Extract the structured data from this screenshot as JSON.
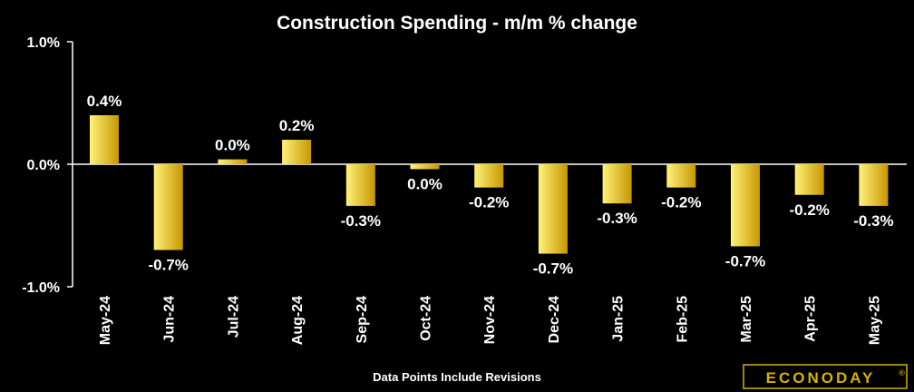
{
  "chart_data": {
    "type": "bar",
    "title": "Construction Spending - m/m % change",
    "categories": [
      "May-24",
      "Jun-24",
      "Jul-24",
      "Aug-24",
      "Sep-24",
      "Oct-24",
      "Nov-24",
      "Dec-24",
      "Jan-25",
      "Feb-25",
      "Mar-25",
      "Apr-25",
      "May-25"
    ],
    "values": [
      0.4,
      -0.7,
      0.04,
      0.2,
      -0.34,
      -0.04,
      -0.19,
      -0.73,
      -0.32,
      -0.19,
      -0.67,
      -0.25,
      -0.34
    ],
    "data_labels": [
      "0.4%",
      "-0.7%",
      "0.0%",
      "0.2%",
      "-0.3%",
      "0.0%",
      "-0.2%",
      "-0.7%",
      "-0.3%",
      "-0.2%",
      "-0.7%",
      "-0.2%",
      "-0.3%"
    ],
    "y_ticks": [
      1.0,
      0.0,
      -1.0
    ],
    "y_tick_labels": [
      "1.0%",
      "0.0%",
      "-1.0%"
    ],
    "ylim": [
      -1.0,
      1.0
    ],
    "grid": false,
    "legend": "none",
    "xlabel": "",
    "ylabel": "",
    "bar_color_light": "#fff27a",
    "bar_color_dark": "#c89600"
  },
  "footnote": "Data Points Include Revisions",
  "logo": {
    "text": "ECONODAY",
    "mark": "®"
  },
  "colors": {
    "background": "#000000",
    "axis": "#ffffff",
    "text": "#ffffff",
    "logo_gold": "#d4b106"
  }
}
